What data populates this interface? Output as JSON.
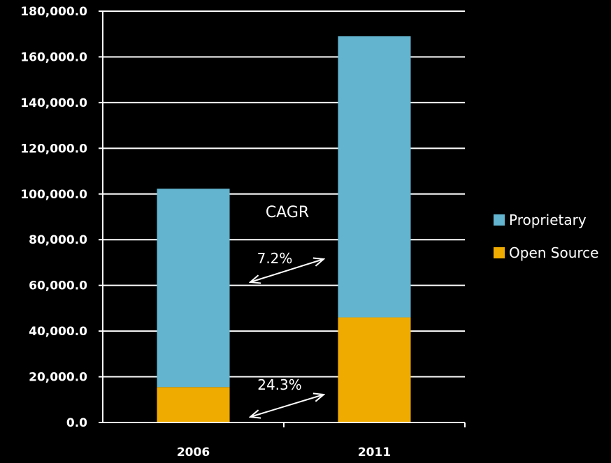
{
  "chart_data": {
    "type": "bar",
    "stacked": true,
    "categories": [
      "2006",
      "2011"
    ],
    "series": [
      {
        "name": "Open Source",
        "values": [
          15500,
          46000
        ],
        "color": "#F0AB00"
      },
      {
        "name": "Proprietary",
        "values": [
          86800,
          123000
        ],
        "color": "#62B4CF"
      }
    ],
    "y_ticks": [
      "0.0",
      "20,000.0",
      "40,000.0",
      "60,000.0",
      "80,000.0",
      "100,000.0",
      "120,000.0",
      "140,000.0",
      "160,000.0",
      "180,000.0"
    ],
    "ylim": [
      0,
      180000
    ],
    "grid": true,
    "legend_position": "right",
    "legend": [
      {
        "label": "Proprietary",
        "color": "#62B4CF"
      },
      {
        "label": "Open Source",
        "color": "#F0AB00"
      }
    ],
    "annotations": {
      "cagr_label": "CAGR",
      "proprietary_cagr": "7.2%",
      "open_source_cagr": "24.3%"
    },
    "title": "",
    "xlabel": "",
    "ylabel": ""
  }
}
